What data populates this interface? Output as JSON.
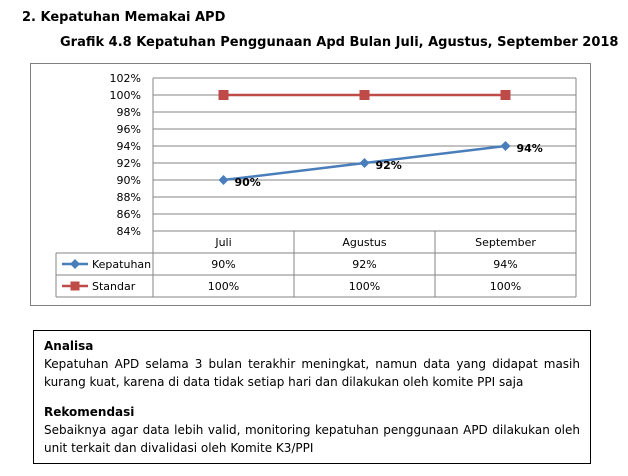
{
  "heading": "2.  Kepatuhan Memakai APD",
  "chart_data": {
    "type": "line",
    "title": "Grafik 4.8 Kepatuhan Penggunaan Apd Bulan Juli, Agustus, September 2018",
    "categories": [
      "Juli",
      "Agustus",
      "September"
    ],
    "series": [
      {
        "name": "Kepatuhan",
        "values": [
          90,
          92,
          94
        ],
        "labels": [
          "90%",
          "92%",
          "94%"
        ],
        "color": "#4a7ebb",
        "marker": "diamond"
      },
      {
        "name": "Standar",
        "values": [
          100,
          100,
          100
        ],
        "labels": [
          "100%",
          "100%",
          "100%"
        ],
        "color": "#be4b48",
        "marker": "square"
      }
    ],
    "ylim": [
      84,
      102
    ],
    "yticks": [
      "102%",
      "100%",
      "98%",
      "96%",
      "94%",
      "92%",
      "90%",
      "88%",
      "86%",
      "84%"
    ],
    "grid": true,
    "legend": "data-table-bottom"
  },
  "notes": {
    "analysis_title": "Analisa",
    "analysis_text": "Kepatuhan APD selama 3 bulan terakhir meningkat, namun data yang didapat masih kurang kuat, karena di data tidak setiap hari dan dilakukan oleh komite PPI saja",
    "recommendation_title": "Rekomendasi",
    "recommendation_text": "Sebaiknya agar data lebih valid, monitoring kepatuhan penggunaan APD dilakukan oleh unit terkait dan divalidasi oleh Komite K3/PPI"
  }
}
